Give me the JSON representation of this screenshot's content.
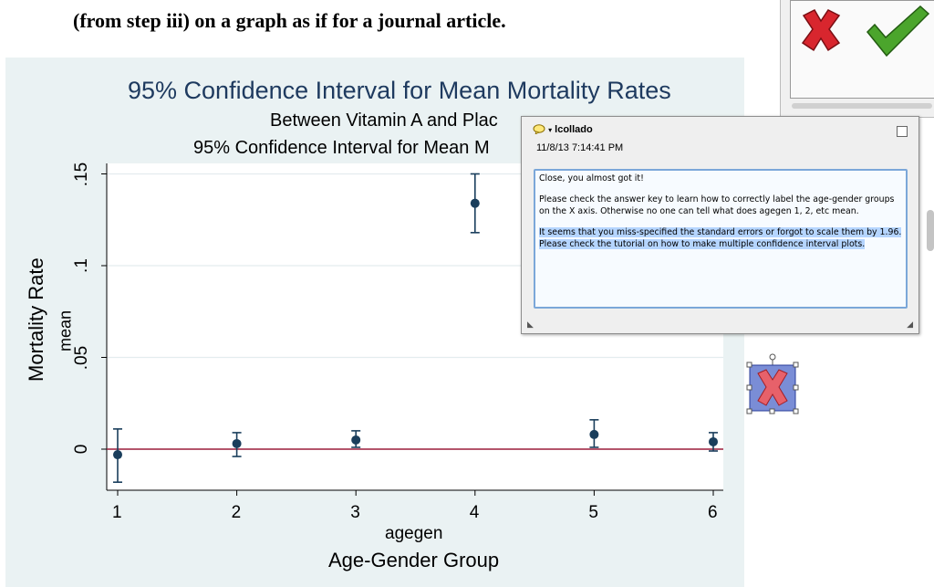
{
  "document": {
    "heading": "(from step iii) on a graph as if for a journal article."
  },
  "chart_data": {
    "type": "scatter",
    "title": "95% Confidence Interval for Mean Mortality Rates",
    "subtitle_1": "Between Vitamin A and Plac",
    "subtitle_2": "95% Confidence Interval for Mean M",
    "xlabel": "agegen",
    "xlabel_2": "Age-Gender Group",
    "ylabel": "Mortality Rate",
    "ylabel_2": "mean",
    "x_ticks": [
      "1",
      "2",
      "3",
      "4",
      "5",
      "6"
    ],
    "y_ticks": [
      "0",
      ".05",
      ".1",
      ".15"
    ],
    "ylim": [
      -0.025,
      0.153
    ],
    "xlim": [
      0.9,
      6.1
    ],
    "reference_line_y": 0,
    "points": [
      {
        "x": 1,
        "mean": -0.003,
        "lower": -0.018,
        "upper": 0.011
      },
      {
        "x": 2,
        "mean": 0.003,
        "lower": -0.004,
        "upper": 0.009
      },
      {
        "x": 3,
        "mean": 0.005,
        "lower": 0.001,
        "upper": 0.01
      },
      {
        "x": 4,
        "mean": 0.134,
        "lower": 0.118,
        "upper": 0.15
      },
      {
        "x": 5,
        "mean": 0.008,
        "lower": 0.001,
        "upper": 0.016
      },
      {
        "x": 6,
        "mean": 0.004,
        "lower": -0.001,
        "upper": 0.009
      }
    ],
    "colors": {
      "marker": "#1a3e5c",
      "refline": "#9b1b3a",
      "grid": "#e4ecee",
      "title": "#1e3a5f"
    }
  },
  "comment": {
    "author": "lcollado",
    "date": "11/8/13 7:14:41 PM",
    "paragraphs": [
      "Close, you almost got it!",
      "Please check the answer key to learn how to correctly label the age-gender groups on the X axis. Otherwise no one can tell what does agegen 1, 2, etc mean.",
      "It seems that you miss-specified the standard errors or forgot to scale them by 1.96. Please check the tutorial on how to make multiple confidence interval plots."
    ]
  },
  "icons": {
    "reject": "reject-x-icon",
    "approve": "approve-check-icon",
    "stamp": "rejected-stamp-icon",
    "comment": "speech-bubble-icon"
  }
}
